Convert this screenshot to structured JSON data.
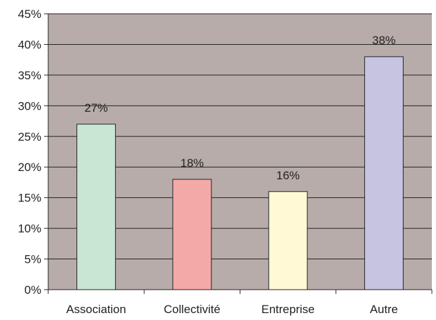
{
  "chart_data": {
    "type": "bar",
    "categories": [
      "Association",
      "Collectivité",
      "Entreprise",
      "Autre"
    ],
    "values": [
      27,
      18,
      16,
      38
    ],
    "data_labels": [
      "27%",
      "18%",
      "16%",
      "38%"
    ],
    "title": "",
    "xlabel": "",
    "ylabel": "",
    "ylim": [
      0,
      45
    ],
    "y_ticks": [
      0,
      5,
      10,
      15,
      20,
      25,
      30,
      35,
      40,
      45
    ],
    "y_tick_labels": [
      "0%",
      "5%",
      "10%",
      "15%",
      "20%",
      "25%",
      "30%",
      "35%",
      "40%",
      "45%"
    ],
    "grid": true,
    "legend": "none",
    "colors": {
      "plot_background": "#b7aca9",
      "gridline": "#222222",
      "bars": [
        "#c9e6d4",
        "#f4a9a9",
        "#fff9d6",
        "#c7c4e2"
      ],
      "bar_outline": "#222222"
    }
  }
}
